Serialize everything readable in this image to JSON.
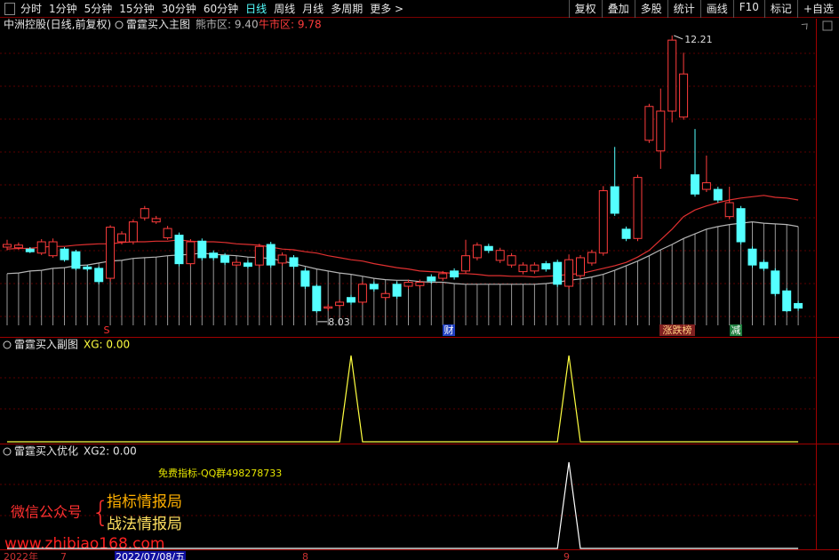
{
  "toolbar": {
    "periods": [
      "分时",
      "1分钟",
      "5分钟",
      "15分钟",
      "30分钟",
      "60分钟",
      "日线",
      "周线",
      "月线",
      "多周期",
      "更多 >"
    ],
    "active": 6,
    "tools": [
      "复权",
      "叠加",
      "多股",
      "统计",
      "画线",
      "F10",
      "标记",
      "+自选"
    ]
  },
  "main_header": {
    "stock": "中洲控股(日线,前复权)",
    "indicator": "雷霆买入主图",
    "bear_zone": "熊市区: 9.40",
    "bull_zone": "牛市区: 9.78"
  },
  "chart_data": [
    {
      "type": "candlestick",
      "ylim": [
        7.68,
        12.45
      ],
      "up_color": "#ff3c3c",
      "down_color": "#54ffff",
      "open": [
        9.02,
        9.01,
        8.99,
        8.93,
        8.89,
        8.99,
        8.95,
        8.72,
        8.7,
        8.55,
        9.1,
        9.1,
        9.46,
        9.4,
        9.16,
        9.2,
        8.77,
        9.11,
        8.93,
        8.89,
        8.75,
        8.78,
        8.75,
        9.06,
        8.78,
        8.86,
        8.66,
        8.43,
        8.1,
        8.14,
        8.26,
        8.19,
        8.46,
        8.26,
        8.46,
        8.43,
        8.44,
        8.57,
        8.55,
        8.66,
        8.66,
        8.86,
        9.03,
        8.82,
        8.75,
        8.65,
        8.66,
        8.77,
        8.79,
        8.43,
        8.59,
        8.78,
        8.93,
        9.93,
        9.29,
        9.15,
        10.63,
        10.47,
        11.07,
        10.98,
        10.11,
        9.89,
        9.89,
        9.48,
        9.6,
        8.99,
        8.79,
        8.66,
        8.36,
        8.17
      ],
      "high": [
        9.13,
        9.09,
        9.02,
        9.14,
        9.15,
        9.02,
        8.98,
        8.75,
        8.73,
        9.35,
        9.26,
        9.44,
        9.64,
        9.49,
        9.34,
        9.24,
        9.14,
        9.15,
        8.97,
        8.93,
        8.83,
        8.82,
        9.07,
        9.1,
        8.94,
        8.9,
        8.7,
        8.46,
        8.16,
        8.23,
        8.3,
        8.5,
        8.5,
        8.36,
        8.5,
        8.53,
        8.53,
        8.61,
        8.66,
        8.7,
        9.13,
        9.09,
        9.07,
        9.01,
        8.93,
        8.79,
        8.79,
        8.81,
        8.83,
        8.91,
        8.9,
        8.98,
        9.94,
        10.53,
        9.33,
        10.11,
        11.18,
        11.41,
        12.21,
        11.95,
        10.8,
        10.4,
        9.93,
        9.93,
        9.64,
        9.03,
        8.83,
        8.7,
        8.4,
        8.21
      ],
      "low": [
        8.97,
        8.98,
        8.93,
        8.9,
        8.86,
        8.8,
        8.67,
        8.66,
        8.46,
        8.5,
        9.06,
        9.06,
        9.42,
        9.37,
        9.13,
        8.73,
        8.73,
        8.82,
        8.82,
        8.75,
        8.72,
        8.7,
        8.71,
        8.71,
        8.74,
        8.69,
        8.39,
        8.03,
        8.06,
        8.1,
        8.15,
        8.15,
        8.35,
        8.22,
        8.24,
        8.39,
        8.4,
        8.47,
        8.51,
        8.53,
        8.62,
        8.82,
        8.93,
        8.78,
        8.71,
        8.61,
        8.62,
        8.65,
        8.42,
        8.39,
        8.55,
        8.74,
        8.89,
        9.49,
        9.11,
        9.11,
        10.59,
        10.2,
        10.9,
        10.94,
        9.78,
        9.85,
        9.69,
        9.44,
        9.06,
        8.71,
        8.66,
        8.28,
        8.04,
        8.06
      ],
      "close": [
        9.06,
        9.05,
        8.95,
        9.1,
        9.1,
        8.83,
        8.7,
        8.69,
        8.5,
        9.32,
        9.22,
        9.4,
        9.6,
        9.45,
        9.3,
        8.77,
        9.1,
        8.86,
        8.86,
        8.79,
        8.79,
        8.73,
        9.03,
        8.75,
        8.9,
        8.73,
        8.43,
        8.06,
        8.12,
        8.19,
        8.19,
        8.46,
        8.39,
        8.32,
        8.28,
        8.49,
        8.49,
        8.51,
        8.62,
        8.57,
        8.89,
        9.05,
        8.97,
        8.97,
        8.89,
        8.75,
        8.75,
        8.69,
        8.46,
        8.83,
        8.86,
        8.94,
        9.87,
        9.53,
        9.15,
        10.07,
        11.14,
        11.07,
        12.14,
        11.63,
        9.82,
        9.99,
        9.73,
        9.69,
        9.1,
        8.75,
        8.7,
        8.32,
        8.06,
        8.1
      ],
      "lines": [
        {
          "color": "#e03030",
          "values": [
            8.99,
            9.0,
            9.0,
            9.02,
            9.03,
            9.03,
            9.05,
            9.06,
            9.07,
            9.07,
            9.09,
            9.1,
            9.1,
            9.11,
            9.11,
            9.13,
            9.11,
            9.1,
            9.1,
            9.09,
            9.07,
            9.06,
            9.05,
            9.02,
            8.99,
            8.98,
            8.95,
            8.93,
            8.89,
            8.86,
            8.83,
            8.81,
            8.77,
            8.74,
            8.71,
            8.69,
            8.66,
            8.65,
            8.64,
            8.62,
            8.62,
            8.61,
            8.59,
            8.59,
            8.58,
            8.58,
            8.57,
            8.58,
            8.59,
            8.61,
            8.62,
            8.66,
            8.7,
            8.74,
            8.79,
            8.87,
            8.97,
            9.13,
            9.29,
            9.48,
            9.58,
            9.64,
            9.69,
            9.73,
            9.76,
            9.78,
            9.8,
            9.77,
            9.76,
            9.73
          ]
        },
        {
          "color": "#b4b4b4",
          "fill_down": true,
          "values": [
            8.62,
            8.63,
            8.66,
            8.67,
            8.7,
            8.71,
            8.74,
            8.75,
            8.78,
            8.81,
            8.82,
            8.85,
            8.86,
            8.87,
            8.89,
            8.9,
            8.91,
            8.93,
            8.91,
            8.9,
            8.89,
            8.87,
            8.86,
            8.85,
            8.81,
            8.77,
            8.73,
            8.69,
            8.66,
            8.63,
            8.61,
            8.58,
            8.55,
            8.53,
            8.52,
            8.52,
            8.5,
            8.49,
            8.49,
            8.47,
            8.46,
            8.46,
            8.46,
            8.46,
            8.46,
            8.46,
            8.46,
            8.47,
            8.49,
            8.52,
            8.54,
            8.57,
            8.61,
            8.67,
            8.74,
            8.81,
            8.89,
            8.98,
            9.06,
            9.15,
            9.22,
            9.29,
            9.33,
            9.36,
            9.38,
            9.4,
            9.38,
            9.37,
            9.36,
            9.33
          ]
        }
      ],
      "annotations": {
        "high": 12.21,
        "low": 8.03
      },
      "events": [
        "S",
        "财",
        "涨跌榜",
        "减"
      ]
    },
    {
      "type": "line",
      "title": "雷霆买入副图",
      "readout": "XG: 0.00",
      "color": "#ffff40",
      "ylim": [
        0,
        1
      ],
      "values": [
        0,
        0,
        0,
        0,
        0,
        0,
        0,
        0,
        0,
        0,
        0,
        0,
        0,
        0,
        0,
        0,
        0,
        0,
        0,
        0,
        0,
        0,
        0,
        0,
        0,
        0,
        0,
        0,
        0,
        0,
        1,
        0,
        0,
        0,
        0,
        0,
        0,
        0,
        0,
        0,
        0,
        0,
        0,
        0,
        0,
        0,
        0,
        0,
        0,
        1,
        0,
        0,
        0,
        0,
        0,
        0,
        0,
        0,
        0,
        0,
        0,
        0,
        0,
        0,
        0,
        0,
        0,
        0,
        0,
        0
      ]
    },
    {
      "type": "line",
      "title": "雷霆买入优化",
      "readout": "XG2: 0.00",
      "color": "#ffffff",
      "ylim": [
        0,
        1
      ],
      "values": [
        0,
        0,
        0,
        0,
        0,
        0,
        0,
        0,
        0,
        0,
        0,
        0,
        0,
        0,
        0,
        0,
        0,
        0,
        0,
        0,
        0,
        0,
        0,
        0,
        0,
        0,
        0,
        0,
        0,
        0,
        0,
        0,
        0,
        0,
        0,
        0,
        0,
        0,
        0,
        0,
        0,
        0,
        0,
        0,
        0,
        0,
        0,
        0,
        0,
        1,
        0,
        0,
        0,
        0,
        0,
        0,
        0,
        0,
        0,
        0,
        0,
        0,
        0,
        0,
        0,
        0,
        0,
        0,
        0,
        0
      ]
    }
  ],
  "promo": {
    "qq": "免费指标-QQ群498278733",
    "wechat": "微信公众号",
    "brace": "{",
    "line1": "指标情报局",
    "line2": "战法情报局",
    "site": "www.zhibiao168.com"
  },
  "date_axis": [
    "2022年",
    "7",
    "2022/07/08/五",
    "8",
    "9"
  ]
}
